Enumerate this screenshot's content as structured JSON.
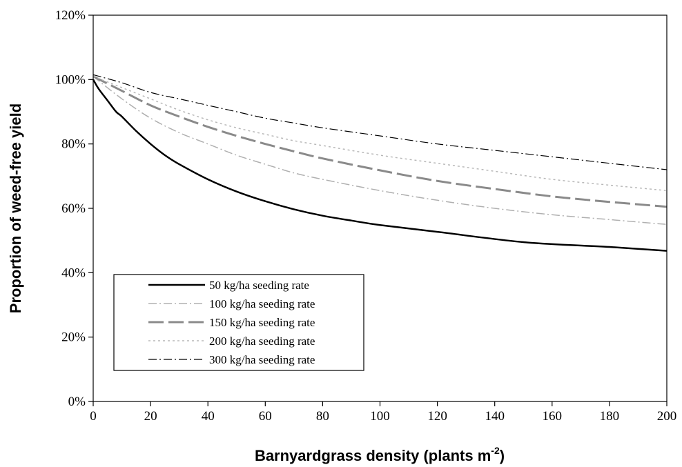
{
  "chart_data": {
    "type": "line",
    "xlabel_main": "Barnyardgrass density (plants m",
    "xlabel_sup": "-2",
    "xlabel_end": ")",
    "ylabel": "Proportion of weed-free yield",
    "xlim": [
      0,
      200
    ],
    "ylim": [
      0,
      1.2
    ],
    "x_ticks": [
      0,
      20,
      40,
      60,
      80,
      100,
      120,
      140,
      160,
      180,
      200
    ],
    "y_ticks": [
      {
        "value": 0,
        "label": "0%"
      },
      {
        "value": 0.2,
        "label": "20%"
      },
      {
        "value": 0.4,
        "label": "40%"
      },
      {
        "value": 0.6,
        "label": "60%"
      },
      {
        "value": 0.8,
        "label": "80%"
      },
      {
        "value": 1.0,
        "label": "100%"
      },
      {
        "value": 1.2,
        "label": "120%"
      }
    ],
    "grid": false,
    "legend_position": "bottom-left",
    "series": [
      {
        "name": "50 kg/ha seeding rate",
        "color": "#000000",
        "dash": "solid",
        "width": 2.5,
        "x": [
          0,
          2,
          5,
          8,
          10,
          15,
          20,
          25,
          30,
          40,
          50,
          60,
          70,
          80,
          90,
          100,
          120,
          150,
          180,
          200
        ],
        "y": [
          1.0,
          0.97,
          0.935,
          0.9,
          0.885,
          0.84,
          0.8,
          0.765,
          0.737,
          0.69,
          0.652,
          0.622,
          0.597,
          0.577,
          0.562,
          0.548,
          0.527,
          0.495,
          0.48,
          0.468
        ]
      },
      {
        "name": "100 kg/ha seeding rate",
        "color": "#b0b0b0",
        "dash": "dashdot",
        "width": 1.5,
        "x": [
          0,
          10,
          20,
          30,
          40,
          50,
          60,
          70,
          80,
          100,
          120,
          140,
          160,
          180,
          200
        ],
        "y": [
          1.01,
          0.94,
          0.88,
          0.835,
          0.8,
          0.765,
          0.737,
          0.71,
          0.69,
          0.655,
          0.625,
          0.6,
          0.58,
          0.565,
          0.55
        ]
      },
      {
        "name": "150 kg/ha seeding rate",
        "color": "#8a8a8a",
        "dash": "longdash",
        "width": 3,
        "x": [
          0,
          10,
          20,
          30,
          40,
          50,
          60,
          70,
          80,
          100,
          120,
          140,
          160,
          180,
          200
        ],
        "y": [
          1.01,
          0.965,
          0.92,
          0.885,
          0.853,
          0.825,
          0.8,
          0.777,
          0.755,
          0.718,
          0.685,
          0.66,
          0.637,
          0.62,
          0.605
        ]
      },
      {
        "name": "200 kg/ha seeding rate",
        "color": "#b8b8b8",
        "dash": "dotted",
        "width": 1.5,
        "x": [
          0,
          10,
          20,
          30,
          40,
          50,
          60,
          70,
          80,
          100,
          120,
          140,
          160,
          180,
          200
        ],
        "y": [
          1.01,
          0.975,
          0.94,
          0.905,
          0.875,
          0.85,
          0.83,
          0.81,
          0.795,
          0.765,
          0.74,
          0.715,
          0.69,
          0.672,
          0.655
        ]
      },
      {
        "name": "300 kg/ha seeding rate",
        "color": "#000000",
        "dash": "dashdot",
        "width": 1.2,
        "x": [
          0,
          10,
          20,
          30,
          40,
          50,
          60,
          70,
          80,
          100,
          120,
          140,
          160,
          180,
          200
        ],
        "y": [
          1.015,
          0.99,
          0.96,
          0.94,
          0.92,
          0.9,
          0.88,
          0.865,
          0.85,
          0.825,
          0.8,
          0.78,
          0.76,
          0.74,
          0.72
        ]
      }
    ]
  }
}
